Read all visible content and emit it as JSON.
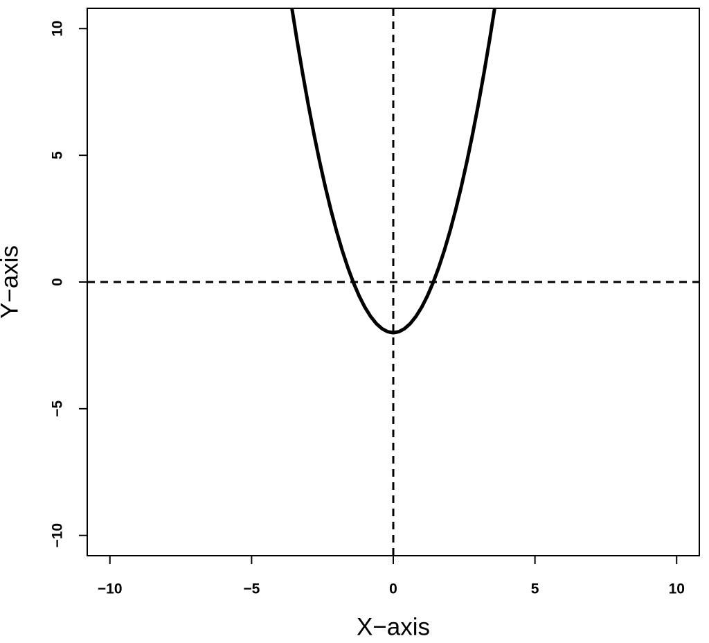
{
  "chart_data": {
    "type": "line",
    "x_label": "X−axis",
    "y_label": "Y−axis",
    "x": [
      -3.6,
      -3.4,
      -3.2,
      -3.0,
      -2.8,
      -2.6,
      -2.4,
      -2.2,
      -2.0,
      -1.8,
      -1.6,
      -1.4,
      -1.2,
      -1.0,
      -0.8,
      -0.6,
      -0.4,
      -0.2,
      0,
      0.2,
      0.4,
      0.6,
      0.8,
      1.0,
      1.2,
      1.4,
      1.6,
      1.8,
      2.0,
      2.2,
      2.4,
      2.6,
      2.8,
      3.0,
      3.2,
      3.4,
      3.6
    ],
    "series": [
      {
        "color": "#000000",
        "values": [
          10.96,
          9.56,
          8.24,
          7,
          5.84,
          4.76,
          3.76,
          2.84,
          2,
          1.24,
          0.56,
          -0.04,
          -0.56,
          -1,
          -1.36,
          -1.64,
          -1.84,
          -1.96,
          -2,
          -1.96,
          -1.84,
          -1.64,
          -1.36,
          -1,
          -0.56,
          -0.04,
          0.56,
          1.24,
          2,
          2.84,
          3.76,
          4.76,
          5.84,
          7,
          8.24,
          9.56,
          10.96
        ]
      }
    ],
    "reference_lines": {
      "h": [
        0
      ],
      "v": [
        0
      ]
    },
    "xlim": [
      -10.8,
      10.8
    ],
    "ylim": [
      -10.8,
      10.8
    ],
    "xticks": [
      {
        "value": -10,
        "label": "−10"
      },
      {
        "value": -5,
        "label": "−5"
      },
      0,
      5,
      10
    ],
    "yticks": [
      {
        "value": -10,
        "label": "−10"
      },
      {
        "value": -5,
        "label": "−5"
      },
      0,
      5,
      10
    ]
  }
}
